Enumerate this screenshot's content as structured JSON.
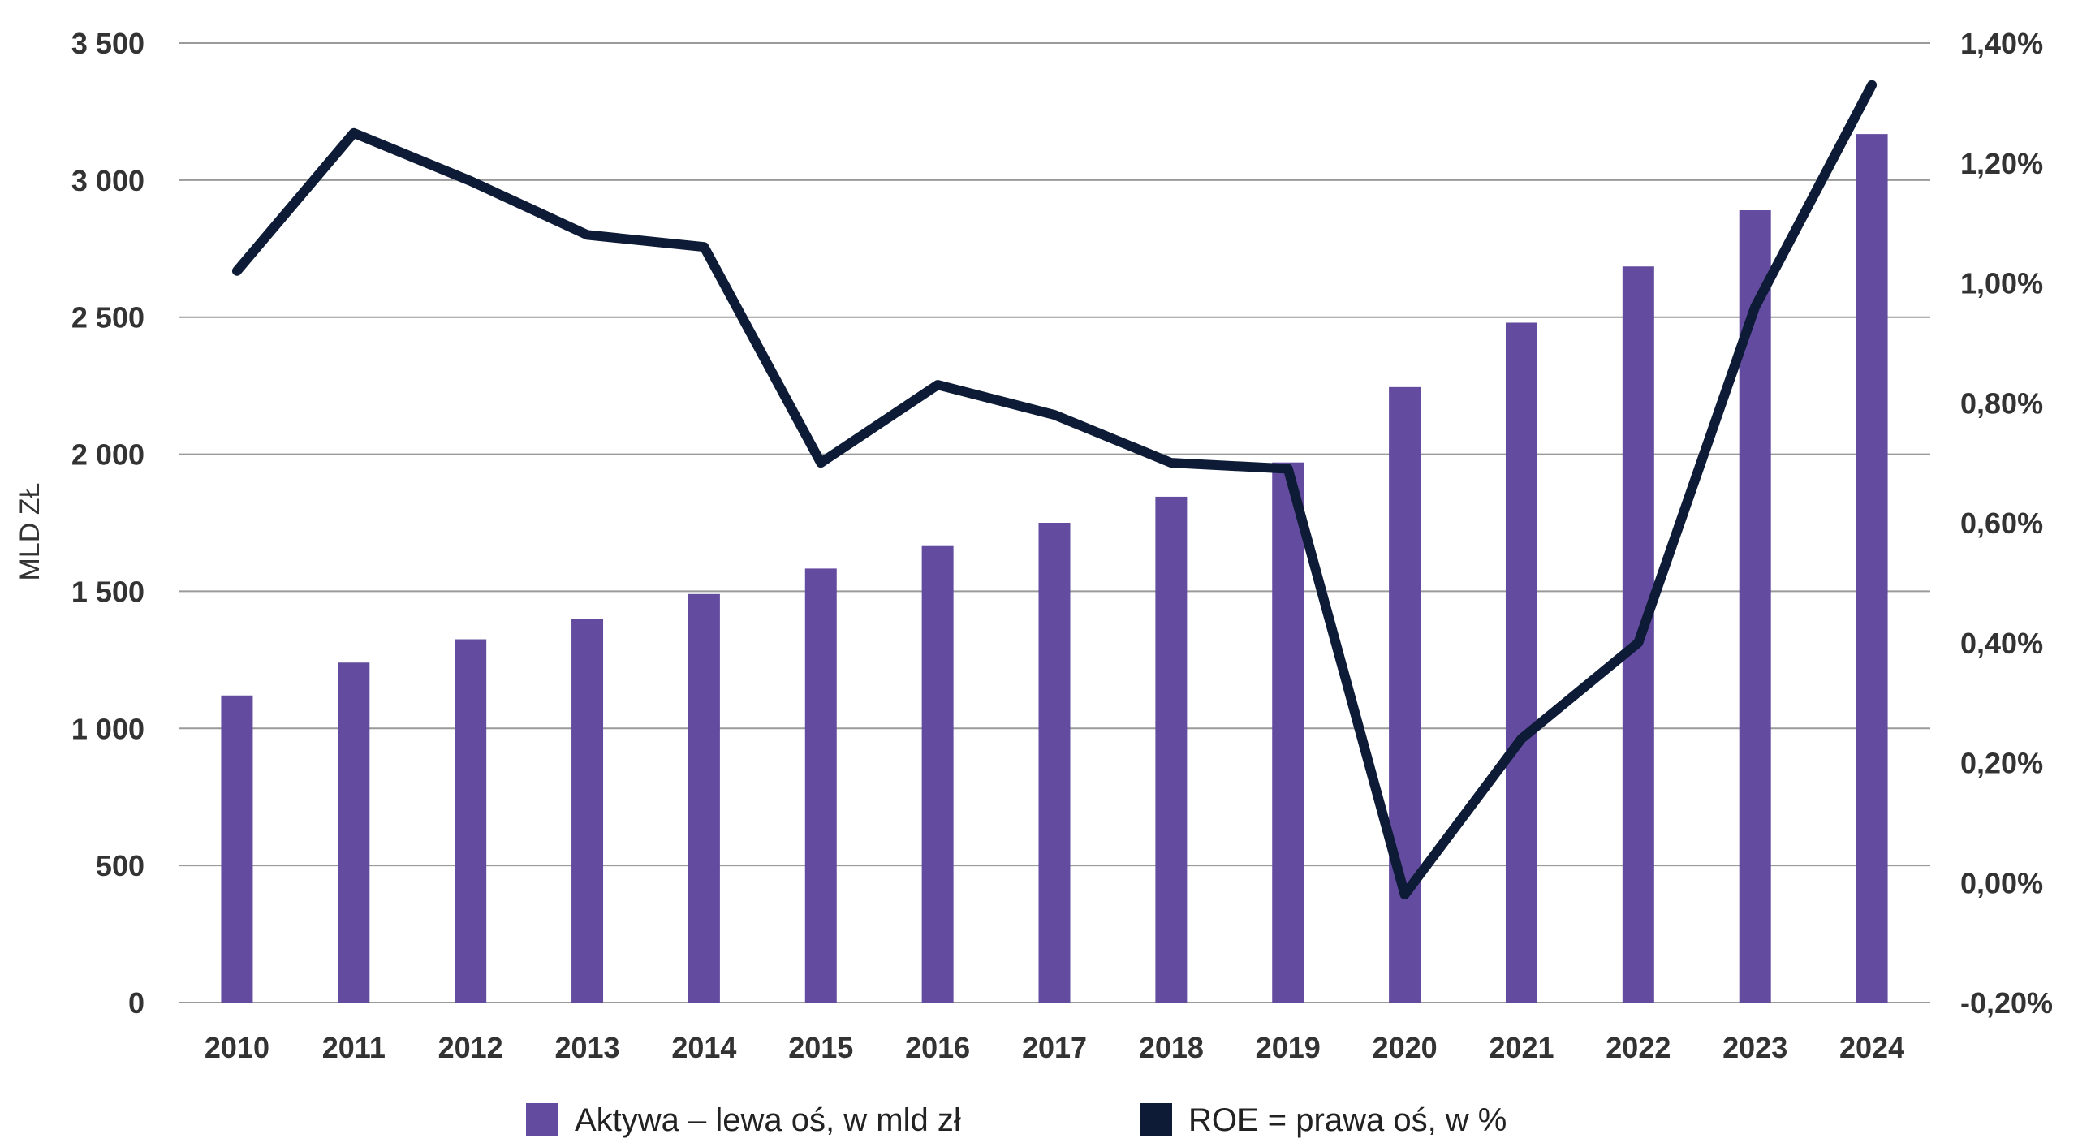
{
  "chart_data": {
    "type": "bar",
    "categories": [
      "2010",
      "2011",
      "2012",
      "2013",
      "2014",
      "2015",
      "2016",
      "2017",
      "2018",
      "2019",
      "2020",
      "2021",
      "2022",
      "2023",
      "2024"
    ],
    "series": [
      {
        "name": "Aktywa – lewa oś, w mld zł",
        "type": "bar",
        "axis": "left",
        "color": "#634c9f",
        "values": [
          1120,
          1240,
          1325,
          1398,
          1490,
          1583,
          1665,
          1750,
          1845,
          1970,
          2245,
          2480,
          2685,
          2890,
          3168
        ]
      },
      {
        "name": "ROE = prawa oś, w %",
        "type": "line",
        "axis": "right",
        "color": "#0d1b36",
        "values": [
          1.02,
          1.25,
          1.17,
          1.08,
          1.06,
          0.7,
          0.83,
          0.78,
          0.7,
          0.69,
          -0.02,
          0.24,
          0.4,
          0.96,
          1.33
        ]
      }
    ],
    "ylabel": "MLD ZŁ",
    "ylim": [
      0,
      3500
    ],
    "y_ticks": [
      "0",
      "500",
      "1 000",
      "1 500",
      "2 000",
      "2 500",
      "3 000",
      "3 500"
    ],
    "y2lim": [
      -0.2,
      1.4
    ],
    "y2_ticks": [
      "-0,20%",
      "0,00%",
      "0,20%",
      "0,40%",
      "0,60%",
      "0,80%",
      "1,00%",
      "1,20%",
      "1,40%"
    ],
    "grid": true,
    "legend_position": "bottom"
  }
}
